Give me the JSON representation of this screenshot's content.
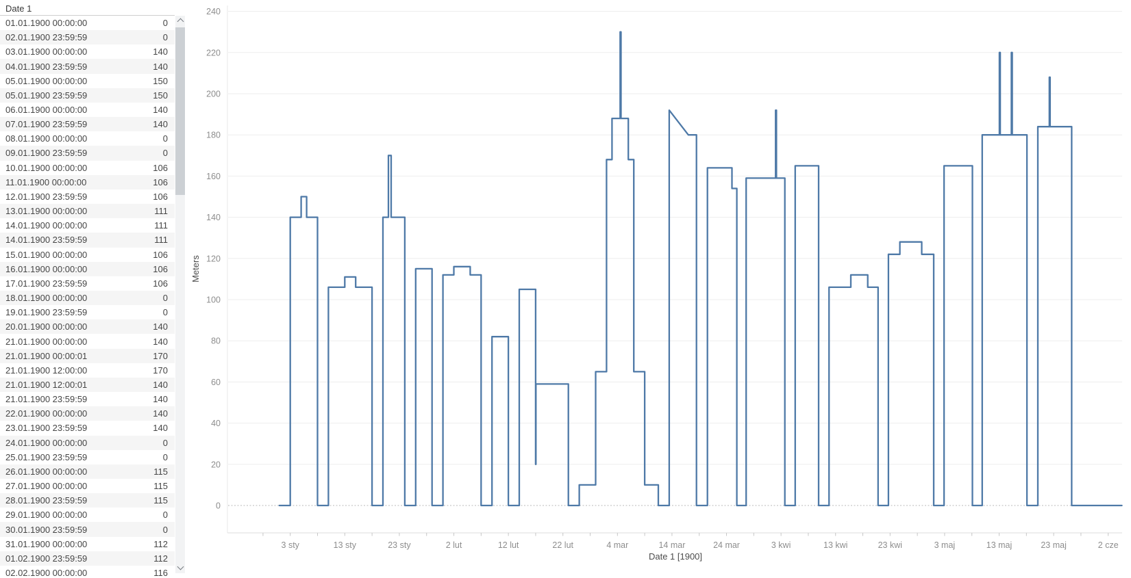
{
  "panel": {
    "header": "Date 1",
    "rows": [
      {
        "date": "01.01.1900 00:00:00",
        "value": "0"
      },
      {
        "date": "02.01.1900 23:59:59",
        "value": "0"
      },
      {
        "date": "03.01.1900 00:00:00",
        "value": "140"
      },
      {
        "date": "04.01.1900 23:59:59",
        "value": "140"
      },
      {
        "date": "05.01.1900 00:00:00",
        "value": "150"
      },
      {
        "date": "05.01.1900 23:59:59",
        "value": "150"
      },
      {
        "date": "06.01.1900 00:00:00",
        "value": "140"
      },
      {
        "date": "07.01.1900 23:59:59",
        "value": "140"
      },
      {
        "date": "08.01.1900 00:00:00",
        "value": "0"
      },
      {
        "date": "09.01.1900 23:59:59",
        "value": "0"
      },
      {
        "date": "10.01.1900 00:00:00",
        "value": "106"
      },
      {
        "date": "11.01.1900 00:00:00",
        "value": "106"
      },
      {
        "date": "12.01.1900 23:59:59",
        "value": "106"
      },
      {
        "date": "13.01.1900 00:00:00",
        "value": "111"
      },
      {
        "date": "14.01.1900 00:00:00",
        "value": "111"
      },
      {
        "date": "14.01.1900 23:59:59",
        "value": "111"
      },
      {
        "date": "15.01.1900 00:00:00",
        "value": "106"
      },
      {
        "date": "16.01.1900 00:00:00",
        "value": "106"
      },
      {
        "date": "17.01.1900 23:59:59",
        "value": "106"
      },
      {
        "date": "18.01.1900 00:00:00",
        "value": "0"
      },
      {
        "date": "19.01.1900 23:59:59",
        "value": "0"
      },
      {
        "date": "20.01.1900 00:00:00",
        "value": "140"
      },
      {
        "date": "21.01.1900 00:00:00",
        "value": "140"
      },
      {
        "date": "21.01.1900 00:00:01",
        "value": "170"
      },
      {
        "date": "21.01.1900 12:00:00",
        "value": "170"
      },
      {
        "date": "21.01.1900 12:00:01",
        "value": "140"
      },
      {
        "date": "21.01.1900 23:59:59",
        "value": "140"
      },
      {
        "date": "22.01.1900 00:00:00",
        "value": "140"
      },
      {
        "date": "23.01.1900 23:59:59",
        "value": "140"
      },
      {
        "date": "24.01.1900 00:00:00",
        "value": "0"
      },
      {
        "date": "25.01.1900 23:59:59",
        "value": "0"
      },
      {
        "date": "26.01.1900 00:00:00",
        "value": "115"
      },
      {
        "date": "27.01.1900 00:00:00",
        "value": "115"
      },
      {
        "date": "28.01.1900 23:59:59",
        "value": "115"
      },
      {
        "date": "29.01.1900 00:00:00",
        "value": "0"
      },
      {
        "date": "30.01.1900 23:59:59",
        "value": "0"
      },
      {
        "date": "31.01.1900 00:00:00",
        "value": "112"
      },
      {
        "date": "01.02.1900 23:59:59",
        "value": "112"
      },
      {
        "date": "02.02.1900 00:00:00",
        "value": "116"
      }
    ]
  },
  "chart_data": {
    "type": "line",
    "subtype": "step",
    "title": "",
    "xlabel": "Date 1 [1900]",
    "ylabel": "Meters",
    "ylim": [
      0,
      240
    ],
    "y_ticks": [
      0,
      20,
      40,
      60,
      80,
      100,
      120,
      140,
      160,
      180,
      200,
      220,
      240
    ],
    "grid": "horizontal, light solid lines every 20; zero line dotted",
    "legend": "none",
    "line_color": "#4e79a7",
    "x_day_reference": "day 0 = 01.01.1900 00:00:00",
    "x_tick_labels": [
      {
        "day": 2,
        "label": "3 sty"
      },
      {
        "day": 12,
        "label": "13 sty"
      },
      {
        "day": 22,
        "label": "23 sty"
      },
      {
        "day": 32,
        "label": "2 lut"
      },
      {
        "day": 42,
        "label": "12 lut"
      },
      {
        "day": 52,
        "label": "22 lut"
      },
      {
        "day": 62,
        "label": "4 mar"
      },
      {
        "day": 72,
        "label": "14 mar"
      },
      {
        "day": 82,
        "label": "24 mar"
      },
      {
        "day": 92,
        "label": "3 kwi"
      },
      {
        "day": 102,
        "label": "13 kwi"
      },
      {
        "day": 112,
        "label": "23 kwi"
      },
      {
        "day": 122,
        "label": "3 maj"
      },
      {
        "day": 132,
        "label": "13 maj"
      },
      {
        "day": 142,
        "label": "23 maj"
      },
      {
        "day": 152,
        "label": "2 cze"
      }
    ],
    "x_minor_ticks": {
      "start_day": -3,
      "end_day": 152,
      "step_days": 5
    },
    "series": [
      {
        "name": "Meters",
        "points": [
          [
            0,
            0
          ],
          [
            2,
            0
          ],
          [
            2,
            140
          ],
          [
            4,
            140
          ],
          [
            4,
            150
          ],
          [
            5,
            150
          ],
          [
            5,
            140
          ],
          [
            7,
            140
          ],
          [
            7,
            0
          ],
          [
            9,
            0
          ],
          [
            9,
            106
          ],
          [
            12,
            106
          ],
          [
            12,
            111
          ],
          [
            14,
            111
          ],
          [
            14,
            106
          ],
          [
            17,
            106
          ],
          [
            17,
            0
          ],
          [
            19,
            0
          ],
          [
            19,
            140
          ],
          [
            20,
            140
          ],
          [
            20,
            170
          ],
          [
            20.5,
            170
          ],
          [
            20.5,
            140
          ],
          [
            23,
            140
          ],
          [
            23,
            0
          ],
          [
            25,
            0
          ],
          [
            25,
            115
          ],
          [
            28,
            115
          ],
          [
            28,
            0
          ],
          [
            30,
            0
          ],
          [
            30,
            112
          ],
          [
            32,
            112
          ],
          [
            32,
            116
          ],
          [
            35,
            116
          ],
          [
            35,
            112
          ],
          [
            37,
            112
          ],
          [
            37,
            0
          ],
          [
            39,
            0
          ],
          [
            39,
            82
          ],
          [
            42,
            82
          ],
          [
            42,
            0
          ],
          [
            44,
            0
          ],
          [
            44,
            105
          ],
          [
            47,
            105
          ],
          [
            47,
            20
          ],
          [
            47.05,
            20
          ],
          [
            47.05,
            59
          ],
          [
            53,
            59
          ],
          [
            53,
            0
          ],
          [
            55,
            0
          ],
          [
            55,
            10
          ],
          [
            58,
            10
          ],
          [
            58,
            65
          ],
          [
            60,
            65
          ],
          [
            60,
            168
          ],
          [
            61,
            168
          ],
          [
            61,
            188
          ],
          [
            62.5,
            188
          ],
          [
            62.5,
            230
          ],
          [
            62.65,
            230
          ],
          [
            62.65,
            188
          ],
          [
            64,
            188
          ],
          [
            64,
            168
          ],
          [
            65,
            168
          ],
          [
            65,
            65
          ],
          [
            67,
            65
          ],
          [
            67,
            10
          ],
          [
            69.5,
            10
          ],
          [
            69.5,
            0
          ],
          [
            71.5,
            0
          ],
          [
            71.5,
            192
          ],
          [
            75,
            180
          ],
          [
            76.5,
            180
          ],
          [
            76.5,
            0
          ],
          [
            78.5,
            0
          ],
          [
            78.5,
            164
          ],
          [
            83,
            164
          ],
          [
            83,
            154
          ],
          [
            83.9,
            154
          ],
          [
            83.9,
            0
          ],
          [
            85.6,
            0
          ],
          [
            85.6,
            159
          ],
          [
            91,
            159
          ],
          [
            91,
            192
          ],
          [
            91.15,
            192
          ],
          [
            91.15,
            159
          ],
          [
            92.7,
            159
          ],
          [
            92.7,
            0
          ],
          [
            94.6,
            0
          ],
          [
            94.6,
            165
          ],
          [
            98.9,
            165
          ],
          [
            98.9,
            0
          ],
          [
            100.8,
            0
          ],
          [
            100.8,
            106
          ],
          [
            104.8,
            106
          ],
          [
            104.8,
            112
          ],
          [
            107.9,
            112
          ],
          [
            107.9,
            106
          ],
          [
            109.8,
            106
          ],
          [
            109.8,
            0
          ],
          [
            111.7,
            0
          ],
          [
            111.7,
            122
          ],
          [
            113.8,
            122
          ],
          [
            113.8,
            128
          ],
          [
            117.8,
            128
          ],
          [
            117.8,
            122
          ],
          [
            120,
            122
          ],
          [
            120,
            0
          ],
          [
            121.9,
            0
          ],
          [
            121.9,
            165
          ],
          [
            127.1,
            165
          ],
          [
            127.1,
            0
          ],
          [
            128.9,
            0
          ],
          [
            128.9,
            180
          ],
          [
            132.05,
            180
          ],
          [
            132.05,
            220
          ],
          [
            132.2,
            220
          ],
          [
            132.2,
            180
          ],
          [
            134.25,
            180
          ],
          [
            134.25,
            220
          ],
          [
            134.4,
            220
          ],
          [
            134.4,
            180
          ],
          [
            137.1,
            180
          ],
          [
            137.1,
            0
          ],
          [
            139.1,
            0
          ],
          [
            139.1,
            184
          ],
          [
            141.2,
            184
          ],
          [
            141.2,
            208
          ],
          [
            141.35,
            208
          ],
          [
            141.35,
            184
          ],
          [
            145.3,
            184
          ],
          [
            145.3,
            0
          ],
          [
            154.5,
            0
          ]
        ]
      }
    ]
  },
  "colors": {
    "line": "#4e79a7",
    "gridline": "#ededed",
    "zero_line": "#b9b9b9",
    "axis_line": "#dcdcdc",
    "tick_mark": "#c6c6c6",
    "tick_label": "#8d8d8d",
    "axis_title": "#4b4b4b",
    "row_stripe": "#f5f5f5",
    "table_text": "#454545"
  }
}
